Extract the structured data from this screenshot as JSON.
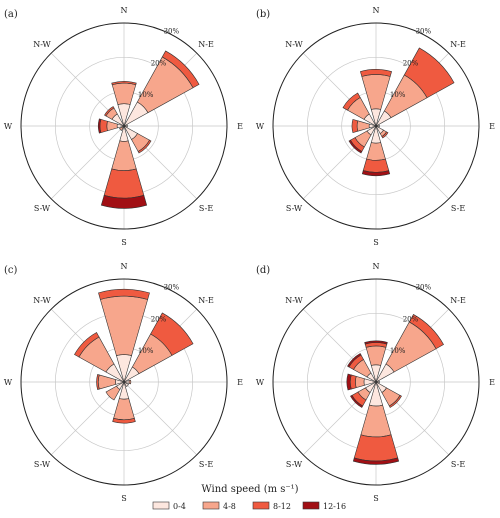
{
  "chart_data": [
    {
      "panel_label": "(a)",
      "type": "windrose",
      "directions": [
        "N",
        "N-E",
        "E",
        "S-E",
        "S",
        "S-W",
        "W",
        "N-W"
      ],
      "speed_bins": [
        "0-4",
        "4-8",
        "8-12",
        "12-16"
      ],
      "radial_ticks": [
        "10%",
        "20%",
        "30%"
      ],
      "rmax": 30,
      "cumulative_percent": {
        "N": [
          6.5,
          12.5,
          13.0,
          13.0
        ],
        "N-E": [
          8.0,
          23.0,
          25.0,
          25.0
        ],
        "E": [
          1.0,
          1.0,
          1.0,
          1.0
        ],
        "S-E": [
          4.5,
          8.5,
          9.0,
          9.0
        ],
        "S": [
          4.5,
          13.0,
          21.0,
          24.0
        ],
        "S-W": [
          0.5,
          1.5,
          1.5,
          1.5
        ],
        "W": [
          2.0,
          5.0,
          7.0,
          7.5
        ],
        "N-W": [
          4.0,
          6.0,
          6.5,
          6.5
        ]
      }
    },
    {
      "panel_label": "(b)",
      "type": "windrose",
      "directions": [
        "N",
        "N-E",
        "E",
        "S-E",
        "S",
        "S-W",
        "W",
        "N-W"
      ],
      "speed_bins": [
        "0-4",
        "4-8",
        "8-12",
        "12-16"
      ],
      "radial_ticks": [
        "10%",
        "20%",
        "30%"
      ],
      "rmax": 30,
      "cumulative_percent": {
        "N": [
          5.0,
          15.0,
          16.5,
          16.5
        ],
        "N-E": [
          5.0,
          17.0,
          26.0,
          26.0
        ],
        "E": [
          1.0,
          1.0,
          1.0,
          1.0
        ],
        "S-E": [
          2.5,
          3.5,
          4.0,
          4.0
        ],
        "S": [
          5.0,
          10.0,
          13.5,
          14.5
        ],
        "S-W": [
          3.0,
          7.0,
          8.5,
          9.0
        ],
        "W": [
          2.0,
          5.5,
          7.0,
          7.0
        ],
        "N-W": [
          4.0,
          9.5,
          11.0,
          11.0
        ]
      }
    },
    {
      "panel_label": "(c)",
      "type": "windrose",
      "directions": [
        "N",
        "N-E",
        "E",
        "S-E",
        "S",
        "S-W",
        "W",
        "N-W"
      ],
      "speed_bins": [
        "0-4",
        "4-8",
        "8-12",
        "12-16"
      ],
      "radial_ticks": [
        "10%",
        "20%",
        "30%"
      ],
      "rmax": 30,
      "cumulative_percent": {
        "N": [
          8.0,
          25.0,
          27.0,
          27.0
        ],
        "N-E": [
          5.0,
          16.0,
          23.0,
          23.0
        ],
        "E": [
          1.5,
          2.0,
          2.0,
          2.0
        ],
        "S-E": [
          1.5,
          1.5,
          1.5,
          1.5
        ],
        "S": [
          5.0,
          11.0,
          12.0,
          12.0
        ],
        "S-W": [
          2.5,
          6.0,
          6.0,
          6.0
        ],
        "W": [
          2.5,
          7.5,
          8.0,
          8.0
        ],
        "N-W": [
          6.0,
          15.0,
          16.5,
          16.5
        ]
      }
    },
    {
      "panel_label": "(d)",
      "type": "windrose",
      "directions": [
        "N",
        "N-E",
        "E",
        "S-E",
        "S",
        "S-W",
        "W",
        "N-W"
      ],
      "speed_bins": [
        "0-4",
        "4-8",
        "8-12",
        "12-16"
      ],
      "radial_ticks": [
        "10%",
        "20%",
        "30%"
      ],
      "rmax": 30,
      "cumulative_percent": {
        "N": [
          5.0,
          10.5,
          11.5,
          12.0
        ],
        "N-E": [
          6.0,
          20.0,
          22.5,
          22.5
        ],
        "E": [
          1.0,
          1.0,
          1.0,
          1.0
        ],
        "S-E": [
          3.5,
          8.0,
          8.5,
          8.5
        ],
        "S": [
          7.0,
          16.0,
          23.0,
          24.0
        ],
        "S-W": [
          3.5,
          6.0,
          8.0,
          8.5
        ],
        "W": [
          3.5,
          6.0,
          7.5,
          8.5
        ],
        "N-W": [
          3.0,
          7.5,
          9.0,
          9.5
        ]
      }
    }
  ],
  "legend": {
    "title": "Wind speed (m s⁻¹)",
    "entries": [
      "0-4",
      "4-8",
      "8-12",
      "12-16"
    ],
    "colors": [
      "#fde7df",
      "#f7a68c",
      "#ef5a40",
      "#a10f14"
    ]
  }
}
